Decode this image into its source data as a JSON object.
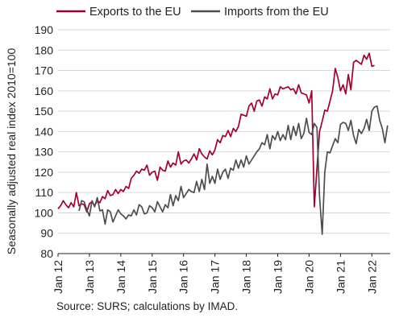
{
  "chart_data": {
    "type": "line",
    "ylabel": "Seasonally adjusted real index 2010=100",
    "ylim": [
      80,
      190
    ],
    "yticks": [
      80,
      90,
      100,
      110,
      120,
      130,
      140,
      150,
      160,
      170,
      180,
      190
    ],
    "xlim": [
      0,
      127
    ],
    "xtick_positions": [
      0,
      12,
      24,
      36,
      48,
      60,
      72,
      84,
      96,
      108,
      120
    ],
    "xtick_labels": [
      "Jan 12",
      "Jan 13",
      "Jan 14",
      "Jan 15",
      "Jan 16",
      "Jan 17",
      "Jan 18",
      "Jan 19",
      "Jan 20",
      "Jan 21",
      "Jan 22"
    ],
    "grid": "horizontal",
    "legend": "top",
    "series": [
      {
        "name": "Exports to the EU",
        "color": "#a3002f",
        "values": [
          102,
          103.5,
          106,
          104,
          102.5,
          105,
          103,
          110,
          103.5,
          104.5,
          104,
          100.5,
          104.5,
          105.5,
          103.5,
          106,
          105,
          108,
          107,
          111,
          108.5,
          109,
          111.5,
          109.5,
          111.5,
          110.5,
          113,
          112,
          117,
          118.5,
          120.5,
          119.5,
          121.5,
          121,
          123.5,
          118.5,
          120,
          120.5,
          116,
          122.5,
          121,
          120.5,
          125.5,
          122.5,
          124.5,
          123.5,
          130,
          124,
          125.5,
          126,
          124.5,
          126.5,
          129,
          126,
          131.5,
          129,
          127.5,
          126.5,
          130.5,
          128.5,
          131,
          136,
          134.5,
          138,
          137.5,
          140.5,
          137.5,
          141.5,
          140,
          142.5,
          148.5,
          148,
          147.5,
          152.5,
          154,
          150,
          155,
          155.5,
          152.5,
          157,
          156,
          161,
          156,
          158.5,
          158,
          162,
          161,
          161.5,
          162,
          160.5,
          161,
          158.5,
          163,
          159,
          158.5,
          158,
          154,
          160,
          103,
          122,
          140,
          145,
          150.5,
          150,
          155,
          160,
          171,
          166.5,
          160,
          163,
          158.5,
          168,
          160.5,
          174,
          175,
          174,
          173,
          177.5,
          175.5,
          178.5,
          172,
          172.5
        ],
        "x_start": 0
      },
      {
        "name": "Imports from the EU",
        "color": "#4d4d4d",
        "values": [
          101,
          106,
          105.5,
          101.5,
          98.5,
          106,
          103,
          107.5,
          101,
          101.5,
          94.5,
          101.5,
          100.5,
          95.5,
          98.5,
          101.5,
          99.5,
          98.5,
          97,
          99,
          98.5,
          101.5,
          99,
          104,
          103,
          99.5,
          100,
          103.5,
          102.5,
          100.5,
          105.5,
          103,
          100.5,
          104,
          102.5,
          109,
          103.5,
          108.5,
          106,
          113,
          107.5,
          109.5,
          111.5,
          110.5,
          110,
          115.5,
          110.5,
          116.5,
          111.5,
          124,
          114.5,
          118,
          114.5,
          121.5,
          116.5,
          120,
          121.5,
          117,
          122,
          121,
          126,
          122,
          126,
          122.5,
          128,
          124,
          126,
          128,
          130,
          131.5,
          134.5,
          133.5,
          138.5,
          131.5,
          138,
          136,
          140,
          135.5,
          138.5,
          136,
          143,
          136,
          142.5,
          138,
          144,
          136.5,
          139,
          146.5,
          139.5,
          138.5,
          144,
          142,
          108,
          89.5,
          120,
          130,
          129.5,
          133,
          136.5,
          134.5,
          143.5,
          144.5,
          144,
          140.5,
          145.5,
          138,
          134,
          141,
          139,
          141.5,
          146,
          140.5,
          150,
          152,
          152.5,
          145.5,
          141.5,
          134.5,
          143
        ],
        "x_start": 8
      }
    ]
  },
  "source": "Source: SURS; calculations by IMAD."
}
